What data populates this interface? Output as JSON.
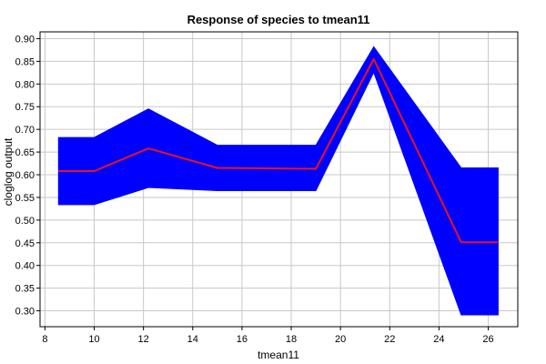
{
  "chart_data": {
    "type": "line",
    "title": "Response of species to tmean11",
    "xlabel": "tmean11",
    "ylabel": "cloglog output",
    "xlim": [
      7.8,
      27.2
    ],
    "ylim": [
      0.265,
      0.915
    ],
    "xticks": [
      8,
      10,
      12,
      14,
      16,
      18,
      20,
      22,
      24,
      26
    ],
    "xtick_labels": [
      "8",
      "10",
      "12",
      "14",
      "16",
      "18",
      "20",
      "22",
      "24",
      "26"
    ],
    "yticks": [
      0.3,
      0.35,
      0.4,
      0.45,
      0.5,
      0.55,
      0.6,
      0.65,
      0.7,
      0.75,
      0.8,
      0.85,
      0.9
    ],
    "ytick_labels": [
      "0.30",
      "0.35",
      "0.40",
      "0.45",
      "0.50",
      "0.55",
      "0.60",
      "0.65",
      "0.70",
      "0.75",
      "0.80",
      "0.85",
      "0.90"
    ],
    "grid": true,
    "series": [
      {
        "role": "mean",
        "color": "#e8141e",
        "x": [
          8.55,
          10.0,
          12.2,
          15.0,
          19.0,
          21.35,
          24.9,
          26.4
        ],
        "y": [
          0.608,
          0.608,
          0.658,
          0.615,
          0.613,
          0.855,
          0.451,
          0.451
        ]
      },
      {
        "role": "band-upper",
        "color": "#0000ff",
        "x": [
          8.55,
          10.0,
          12.2,
          15.0,
          19.0,
          21.35,
          24.9,
          26.4
        ],
        "y": [
          0.682,
          0.682,
          0.745,
          0.665,
          0.665,
          0.882,
          0.615,
          0.615
        ]
      },
      {
        "role": "band-lower",
        "color": "#0000ff",
        "x": [
          8.55,
          10.0,
          12.2,
          15.0,
          19.0,
          21.35,
          24.9,
          26.4
        ],
        "y": [
          0.534,
          0.534,
          0.572,
          0.565,
          0.565,
          0.826,
          0.291,
          0.291
        ]
      }
    ]
  }
}
